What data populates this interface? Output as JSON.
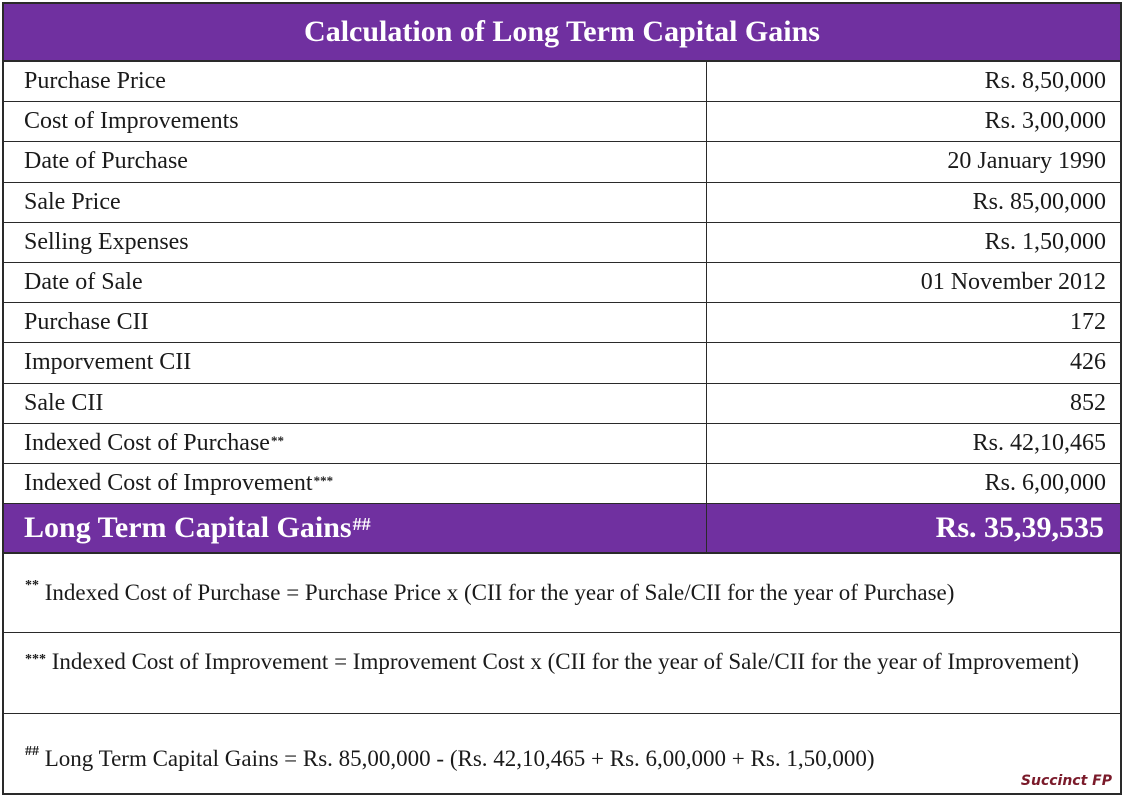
{
  "title": "Calculation of Long Term Capital Gains",
  "rows": [
    {
      "label": "Purchase Price",
      "sup": "",
      "value": "Rs. 8,50,000"
    },
    {
      "label": "Cost of Improvements",
      "sup": "",
      "value": "Rs. 3,00,000"
    },
    {
      "label": "Date of Purchase",
      "sup": "",
      "value": "20 January 1990"
    },
    {
      "label": "Sale Price",
      "sup": "",
      "value": "Rs. 85,00,000"
    },
    {
      "label": "Selling Expenses",
      "sup": "",
      "value": "Rs. 1,50,000"
    },
    {
      "label": "Date of Sale",
      "sup": "",
      "value": "01 November 2012"
    },
    {
      "label": "Purchase CII",
      "sup": "",
      "value": "172"
    },
    {
      "label": "Imporvement CII",
      "sup": "",
      "value": "426"
    },
    {
      "label": "Sale CII",
      "sup": "",
      "value": "852"
    },
    {
      "label": "Indexed Cost of Purchase",
      "sup": "**",
      "value": "Rs. 42,10,465"
    },
    {
      "label": "Indexed Cost of Improvement",
      "sup": "***",
      "value": "Rs. 6,00,000"
    }
  ],
  "total": {
    "label": "Long Term Capital Gains",
    "sup": "##",
    "value": "Rs. 35,39,535"
  },
  "notes": [
    {
      "marker": "**",
      "text": " Indexed Cost of Purchase = Purchase Price  x (CII for the year of Sale/CII for the year of Purchase)"
    },
    {
      "marker": "***",
      "text": " Indexed Cost of Improvement = Improvement Cost  x (CII for the year of Sale/CII for the year of Improvement)"
    },
    {
      "marker": "##",
      "text": " Long Term Capital Gains = Rs. 85,00,000 - (Rs. 42,10,465 + Rs. 6,00,000 + Rs. 1,50,000)"
    }
  ],
  "watermark": "Succinct FP",
  "colors": {
    "header_bg": "#7030a0",
    "header_text": "#ffffff",
    "border": "#2a2a2a",
    "watermark": "#7a1a2a"
  }
}
